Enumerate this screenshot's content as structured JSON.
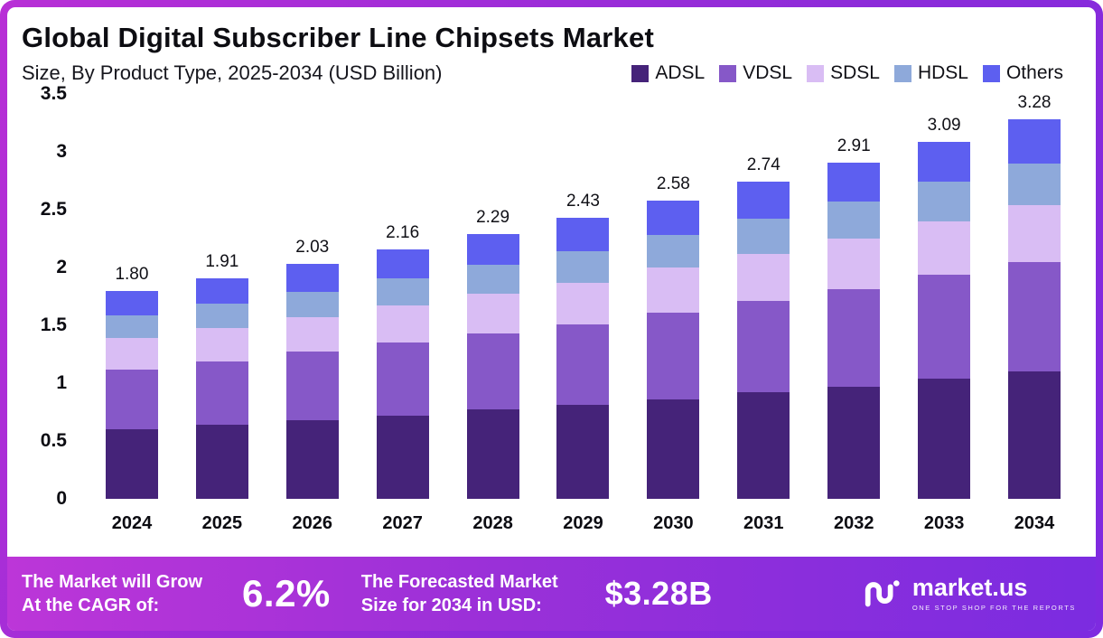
{
  "header": {
    "title": "Global Digital Subscriber Line Chipsets Market",
    "subtitle": "Size, By Product Type, 2025-2034 (USD Billion)"
  },
  "chart_data": {
    "type": "bar",
    "stacked": true,
    "title": "Global Digital Subscriber Line Chipsets Market Size, By Product Type, 2025-2034 (USD Billion)",
    "categories": [
      "2024",
      "2025",
      "2026",
      "2027",
      "2028",
      "2029",
      "2030",
      "2031",
      "2032",
      "2033",
      "2034"
    ],
    "totals": [
      1.8,
      1.91,
      2.03,
      2.16,
      2.29,
      2.43,
      2.58,
      2.74,
      2.91,
      3.09,
      3.28
    ],
    "total_labels": [
      "1.80",
      "1.91",
      "2.03",
      "2.16",
      "2.29",
      "2.43",
      "2.58",
      "2.74",
      "2.91",
      "3.09",
      "3.28"
    ],
    "series": [
      {
        "name": "ADSL",
        "color": "#452379",
        "values": [
          0.6,
          0.64,
          0.68,
          0.72,
          0.77,
          0.81,
          0.86,
          0.92,
          0.97,
          1.04,
          1.1
        ]
      },
      {
        "name": "VDSL",
        "color": "#8658c8",
        "values": [
          0.52,
          0.55,
          0.59,
          0.63,
          0.66,
          0.7,
          0.75,
          0.79,
          0.84,
          0.9,
          0.95
        ]
      },
      {
        "name": "SDSL",
        "color": "#d9bdf4",
        "values": [
          0.27,
          0.29,
          0.3,
          0.32,
          0.34,
          0.36,
          0.39,
          0.41,
          0.44,
          0.46,
          0.49
        ]
      },
      {
        "name": "HDSL",
        "color": "#8ea9da",
        "values": [
          0.2,
          0.21,
          0.22,
          0.24,
          0.25,
          0.27,
          0.28,
          0.3,
          0.32,
          0.34,
          0.36
        ]
      },
      {
        "name": "Others",
        "color": "#5d5ff0",
        "values": [
          0.21,
          0.22,
          0.24,
          0.25,
          0.27,
          0.29,
          0.3,
          0.32,
          0.34,
          0.35,
          0.38
        ]
      }
    ],
    "ylim": [
      0,
      3.5
    ],
    "yticks": [
      "0",
      "0.5",
      "1",
      "1.5",
      "2",
      "2.5",
      "3",
      "3.5"
    ],
    "legend_position": "top-right",
    "grid": false
  },
  "footer": {
    "cagr_label_line1": "The Market will Grow",
    "cagr_label_line2": "At the CAGR of:",
    "cagr_value": "6.2%",
    "forecast_label_line1": "The Forecasted Market",
    "forecast_label_line2": "Size for 2034 in USD:",
    "forecast_value": "$3.28B",
    "brand_name": "market.us",
    "brand_tagline": "ONE STOP SHOP FOR THE REPORTS"
  }
}
